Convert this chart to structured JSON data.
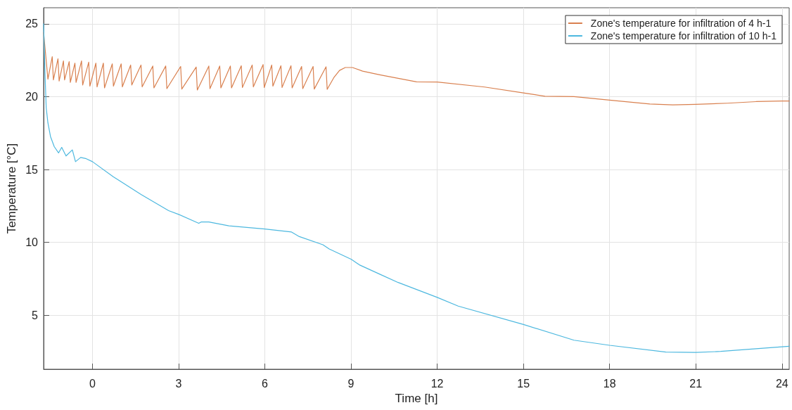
{
  "chart_data": {
    "type": "line",
    "xlabel": "Time [h]",
    "ylabel": "Temperature [°C]",
    "xlim": [
      -1.7,
      24.25
    ],
    "xticks": [
      0,
      3,
      6,
      9,
      12,
      15,
      18,
      21,
      24
    ],
    "ylim": [
      1.3,
      26.1
    ],
    "yticks": [
      5,
      10,
      15,
      20,
      25
    ],
    "grid": true,
    "legend": "top right",
    "marker": "none",
    "line_style": "solid",
    "series": [
      {
        "name": "Zone's temperature for infiltration of 4 h-1",
        "color": "#d9804f",
        "x": [
          -1.7,
          -1.55,
          -1.4,
          -1.36,
          -1.2,
          -1.16,
          -1.01,
          -0.97,
          -0.81,
          -0.77,
          -0.61,
          -0.57,
          -0.38,
          -0.34,
          -0.13,
          -0.09,
          0.12,
          0.16,
          0.38,
          0.42,
          0.69,
          0.73,
          1.0,
          1.04,
          1.33,
          1.37,
          1.69,
          1.73,
          2.1,
          2.14,
          2.55,
          2.59,
          3.07,
          3.11,
          3.61,
          3.65,
          4.05,
          4.09,
          4.43,
          4.47,
          4.8,
          4.84,
          5.18,
          5.22,
          5.56,
          5.6,
          5.94,
          5.98,
          6.24,
          6.28,
          6.56,
          6.6,
          6.91,
          6.95,
          7.28,
          7.32,
          7.68,
          7.72,
          8.13,
          8.17,
          8.4,
          8.6,
          8.8,
          9.05,
          9.4,
          10,
          11.28,
          12,
          13.65,
          15,
          15.75,
          16.76,
          18,
          19.4,
          20.2,
          21,
          22.1,
          23.1,
          24,
          24.25
        ],
        "values": [
          24.4,
          21.2,
          22.74,
          21.15,
          22.6,
          21.07,
          22.45,
          21.15,
          22.4,
          20.98,
          22.3,
          20.98,
          22.45,
          20.8,
          22.37,
          20.72,
          22.3,
          20.67,
          22.3,
          20.6,
          22.25,
          20.72,
          22.25,
          20.67,
          22.17,
          20.8,
          22.17,
          20.67,
          22.1,
          20.6,
          22.1,
          20.55,
          22.07,
          20.52,
          22.03,
          20.46,
          22.1,
          20.55,
          22.1,
          20.6,
          22.1,
          20.6,
          22.12,
          20.63,
          22.17,
          20.67,
          22.2,
          20.63,
          22.17,
          20.72,
          22.12,
          20.63,
          22.12,
          20.6,
          22.07,
          20.55,
          22.07,
          20.52,
          22.05,
          20.5,
          21.3,
          21.8,
          22.0,
          22.0,
          21.75,
          21.5,
          21.02,
          21.0,
          20.66,
          20.26,
          20.03,
          20.0,
          19.76,
          19.5,
          19.44,
          19.47,
          19.55,
          19.66,
          19.7,
          19.7
        ]
      },
      {
        "name": "Zone's temperature for infiltration of 10 h-1",
        "color": "#4db8df",
        "x": [
          -1.7,
          -1.65,
          -1.61,
          -1.55,
          -1.46,
          -1.33,
          -1.18,
          -1.07,
          -0.92,
          -0.7,
          -0.59,
          -0.41,
          -0.24,
          0,
          0.73,
          1.69,
          2.65,
          3.0,
          3.7,
          3.78,
          4.05,
          4.75,
          6.0,
          6.93,
          7.2,
          8.02,
          8.24,
          9.01,
          9.29,
          10.0,
          10.64,
          12.0,
          12.73,
          15.0,
          16.76,
          18.0,
          19.96,
          21.0,
          21.87,
          24.0,
          24.25
        ],
        "values": [
          25.0,
          21.5,
          19.25,
          18.2,
          17.26,
          16.57,
          16.14,
          16.52,
          15.93,
          16.35,
          15.54,
          15.83,
          15.76,
          15.54,
          14.5,
          13.29,
          12.18,
          11.92,
          11.31,
          11.4,
          11.4,
          11.14,
          10.92,
          10.71,
          10.4,
          9.84,
          9.55,
          8.84,
          8.46,
          7.82,
          7.25,
          6.23,
          5.63,
          4.37,
          3.29,
          2.94,
          2.48,
          2.45,
          2.52,
          2.84,
          2.87
        ]
      }
    ]
  }
}
